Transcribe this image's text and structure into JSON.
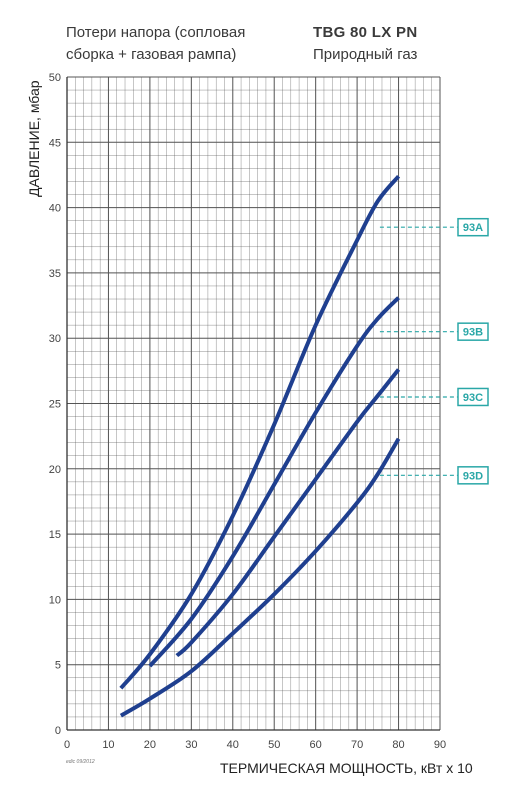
{
  "header": {
    "title_line1": "Потери напора (сопловая",
    "title_line2": "сборка + газовая рампа)",
    "model": "TBG 80 LX PN",
    "gas_type": "Природный газ"
  },
  "footnote": "edic 09/2012",
  "colors": {
    "curve": "#1f3f8f",
    "grid": "#555555",
    "tag": "#2aa7a7"
  },
  "chart_data": {
    "type": "line",
    "xlabel": "ТЕРМИЧЕСКАЯ МОЩНОСТЬ, кВт x 10",
    "ylabel": "ДАВЛЕНИЕ, мбар",
    "xlim": [
      0,
      90
    ],
    "ylim": [
      0,
      50
    ],
    "x_ticks": [
      0,
      10,
      20,
      30,
      40,
      50,
      60,
      70,
      80,
      90
    ],
    "y_ticks": [
      0,
      5,
      10,
      15,
      20,
      25,
      30,
      35,
      40,
      45,
      50
    ],
    "grid": true,
    "series": [
      {
        "name": "93A",
        "label_at_y": 38.5,
        "points": [
          [
            13,
            3.2
          ],
          [
            20,
            5.8
          ],
          [
            30,
            10.4
          ],
          [
            40,
            16.4
          ],
          [
            50,
            23.4
          ],
          [
            60,
            31.0
          ],
          [
            70,
            37.5
          ],
          [
            75,
            40.5
          ],
          [
            80,
            42.4
          ]
        ]
      },
      {
        "name": "93B",
        "label_at_y": 30.5,
        "points": [
          [
            20,
            4.9
          ],
          [
            30,
            8.5
          ],
          [
            40,
            13.3
          ],
          [
            50,
            18.8
          ],
          [
            60,
            24.3
          ],
          [
            70,
            29.4
          ],
          [
            75,
            31.5
          ],
          [
            80,
            33.1
          ]
        ]
      },
      {
        "name": "93C",
        "label_at_y": 25.5,
        "points": [
          [
            26.5,
            5.7
          ],
          [
            30,
            6.7
          ],
          [
            40,
            10.4
          ],
          [
            50,
            14.8
          ],
          [
            60,
            19.2
          ],
          [
            70,
            23.6
          ],
          [
            75,
            25.6
          ],
          [
            80,
            27.6
          ]
        ]
      },
      {
        "name": "93D",
        "label_at_y": 19.5,
        "points": [
          [
            13,
            1.1
          ],
          [
            20,
            2.4
          ],
          [
            30,
            4.5
          ],
          [
            40,
            7.4
          ],
          [
            50,
            10.4
          ],
          [
            60,
            13.7
          ],
          [
            70,
            17.4
          ],
          [
            75,
            19.6
          ],
          [
            80,
            22.3
          ]
        ]
      }
    ]
  }
}
